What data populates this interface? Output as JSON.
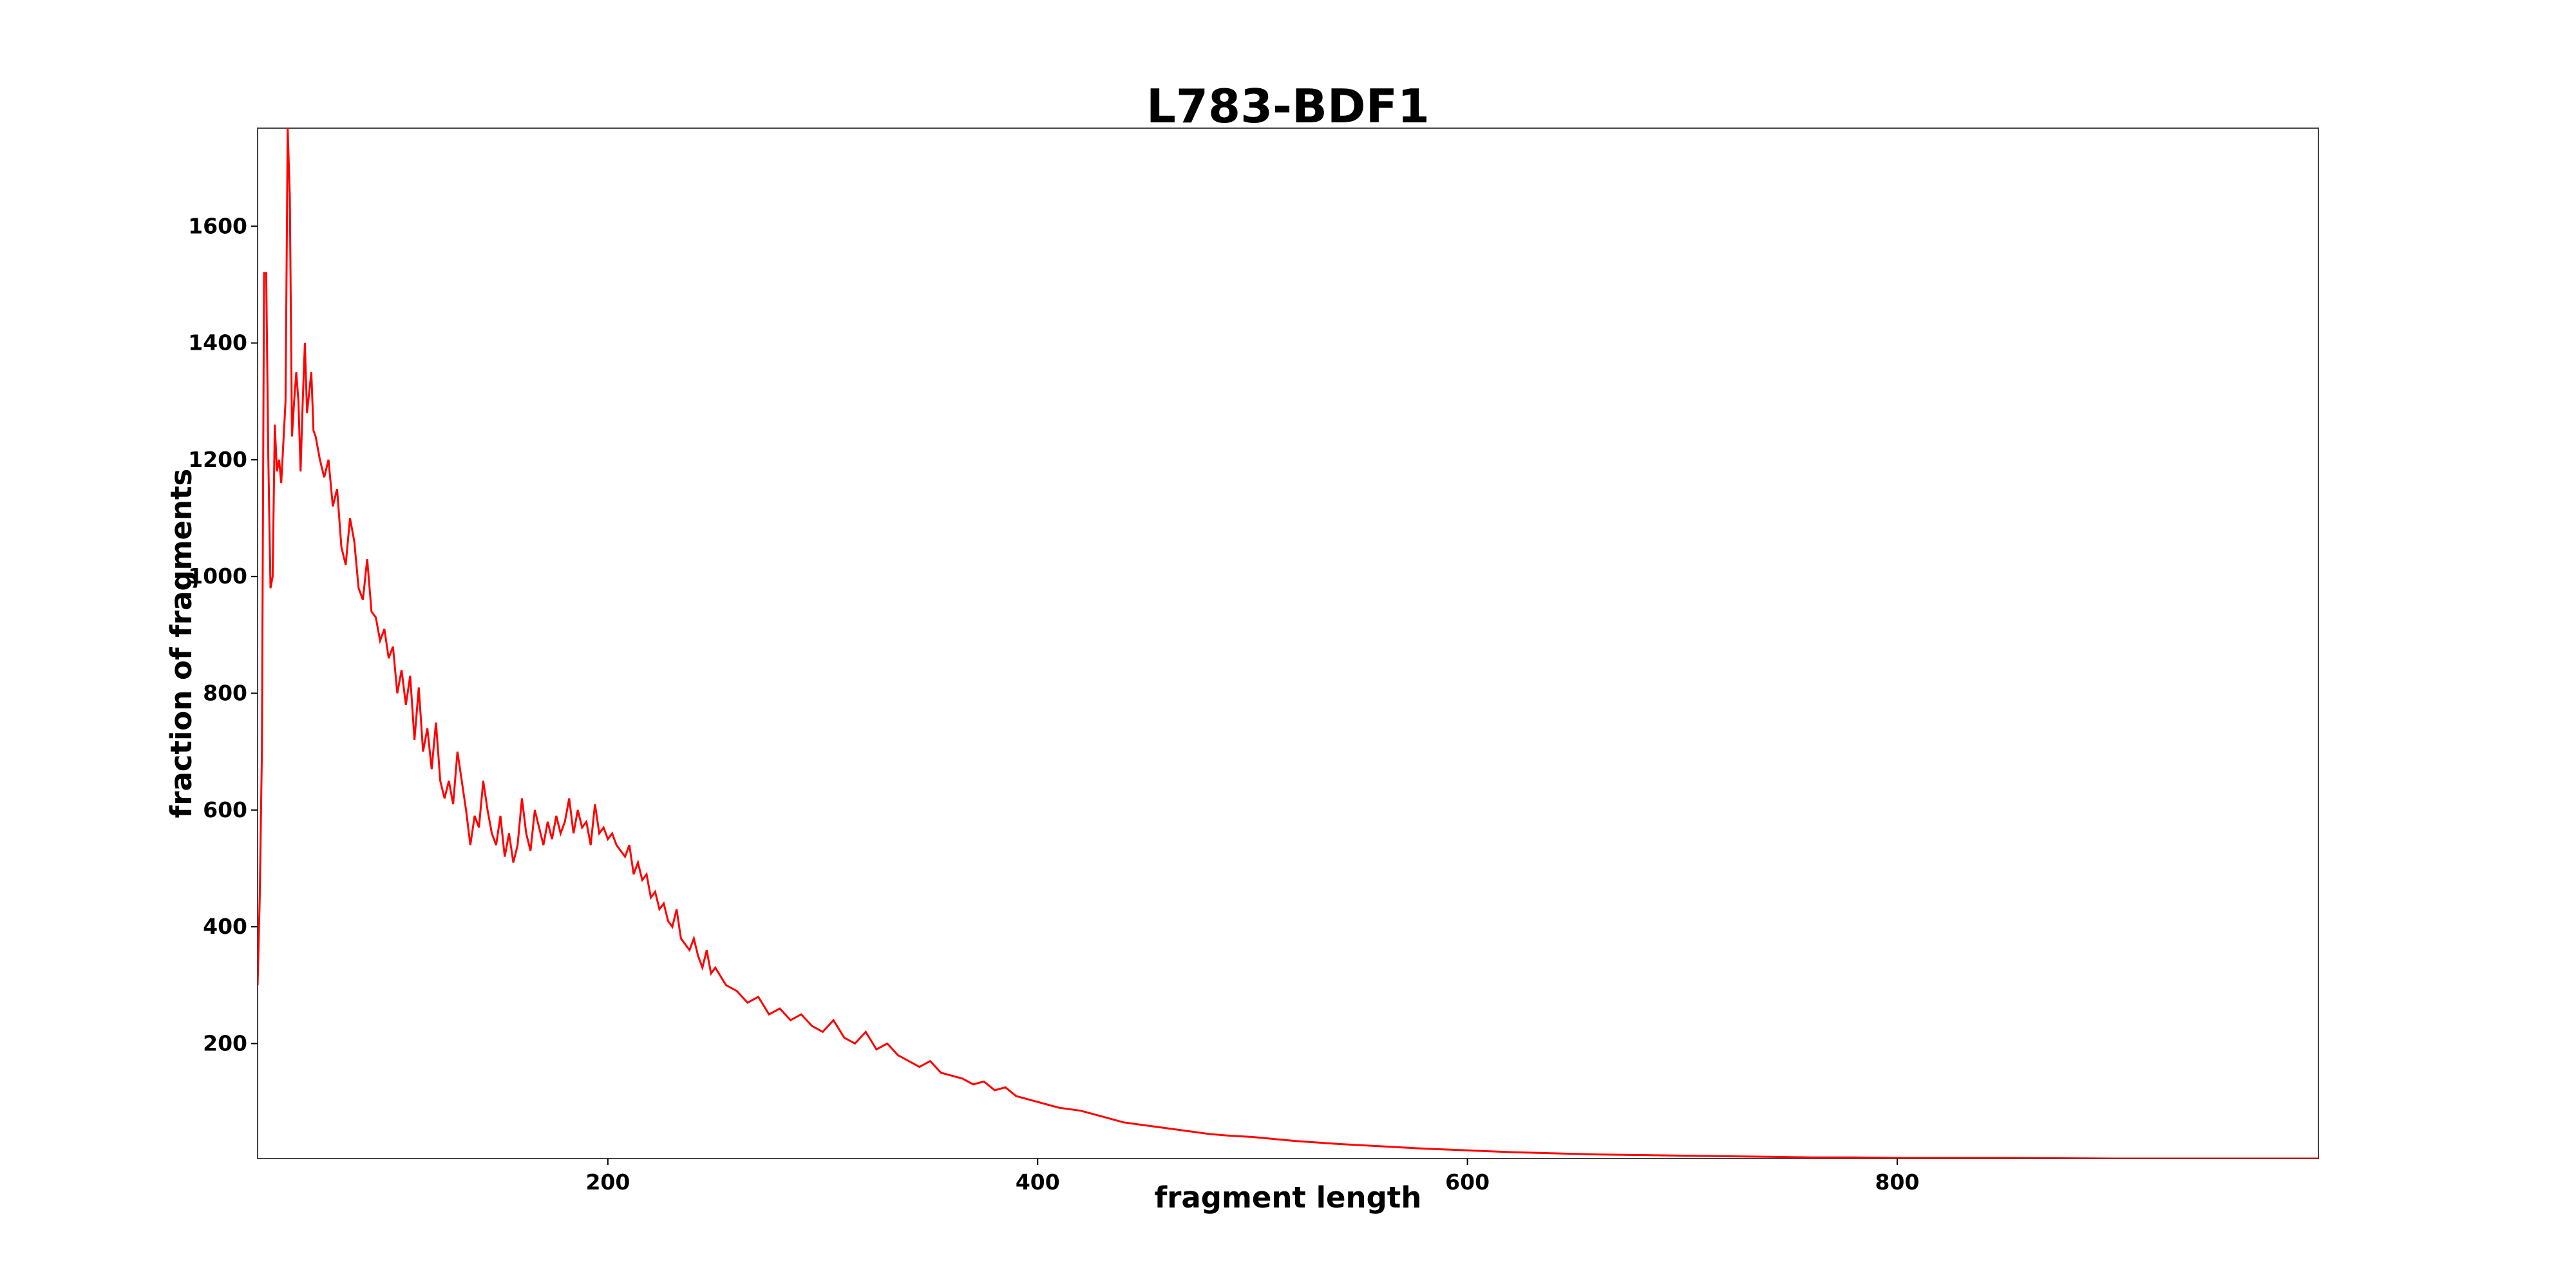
{
  "chart_data": {
    "type": "line",
    "title": "L783-BDF1",
    "x_label": "fragment length",
    "y_label": "fraction of fragments",
    "color": "#ff0000",
    "x": [
      37,
      38,
      39,
      40,
      41,
      42,
      43,
      44,
      45,
      46,
      47,
      48,
      50,
      51,
      52,
      53,
      54,
      55,
      56,
      57,
      58,
      59,
      60,
      62,
      63,
      64,
      66,
      68,
      70,
      72,
      74,
      76,
      78,
      80,
      82,
      84,
      86,
      88,
      90,
      92,
      94,
      96,
      98,
      100,
      102,
      104,
      106,
      108,
      110,
      112,
      114,
      116,
      118,
      120,
      122,
      124,
      126,
      128,
      130,
      132,
      134,
      136,
      138,
      140,
      142,
      144,
      146,
      148,
      150,
      152,
      154,
      156,
      158,
      160,
      162,
      164,
      166,
      168,
      170,
      172,
      174,
      176,
      178,
      180,
      182,
      184,
      186,
      188,
      190,
      192,
      194,
      196,
      198,
      200,
      202,
      204,
      206,
      208,
      210,
      212,
      214,
      216,
      218,
      220,
      222,
      224,
      226,
      228,
      230,
      232,
      234,
      236,
      238,
      240,
      242,
      244,
      246,
      248,
      250,
      255,
      260,
      265,
      270,
      275,
      280,
      285,
      290,
      295,
      300,
      305,
      310,
      315,
      320,
      325,
      330,
      335,
      340,
      345,
      350,
      355,
      360,
      365,
      370,
      375,
      380,
      385,
      390,
      395,
      400,
      410,
      420,
      430,
      440,
      450,
      460,
      470,
      480,
      490,
      500,
      520,
      540,
      560,
      580,
      600,
      620,
      640,
      660,
      680,
      700,
      720,
      740,
      760,
      780,
      800,
      850,
      900,
      950,
      996
    ],
    "values": [
      300,
      450,
      700,
      1520,
      1520,
      1200,
      980,
      1000,
      1260,
      1180,
      1200,
      1160,
      1300,
      1768,
      1650,
      1240,
      1300,
      1350,
      1300,
      1180,
      1300,
      1400,
      1280,
      1350,
      1250,
      1240,
      1200,
      1170,
      1200,
      1120,
      1150,
      1050,
      1020,
      1100,
      1060,
      980,
      960,
      1030,
      940,
      930,
      890,
      910,
      860,
      880,
      800,
      840,
      780,
      830,
      720,
      810,
      700,
      740,
      670,
      750,
      650,
      620,
      650,
      610,
      700,
      650,
      600,
      540,
      590,
      570,
      650,
      600,
      560,
      540,
      590,
      520,
      560,
      510,
      540,
      620,
      560,
      530,
      600,
      570,
      540,
      580,
      550,
      590,
      560,
      580,
      620,
      560,
      600,
      570,
      580,
      540,
      610,
      560,
      570,
      550,
      560,
      540,
      530,
      520,
      540,
      490,
      510,
      480,
      490,
      450,
      460,
      430,
      440,
      410,
      400,
      430,
      380,
      370,
      360,
      380,
      350,
      330,
      360,
      320,
      330,
      300,
      290,
      270,
      280,
      250,
      260,
      240,
      250,
      230,
      220,
      240,
      210,
      200,
      220,
      190,
      200,
      180,
      170,
      160,
      170,
      150,
      145,
      140,
      130,
      135,
      120,
      125,
      110,
      105,
      100,
      90,
      85,
      75,
      65,
      60,
      55,
      50,
      45,
      42,
      40,
      33,
      28,
      24,
      20,
      17,
      14,
      12,
      10,
      9,
      8,
      7,
      6,
      5,
      5,
      4,
      4,
      3,
      3,
      3
    ],
    "xlim": [
      37,
      996
    ],
    "ylim": [
      3,
      1768
    ],
    "xticks": [
      200,
      400,
      600,
      800
    ],
    "yticks": [
      200,
      400,
      600,
      800,
      1000,
      1200,
      1400,
      1600
    ],
    "grid": false
  }
}
